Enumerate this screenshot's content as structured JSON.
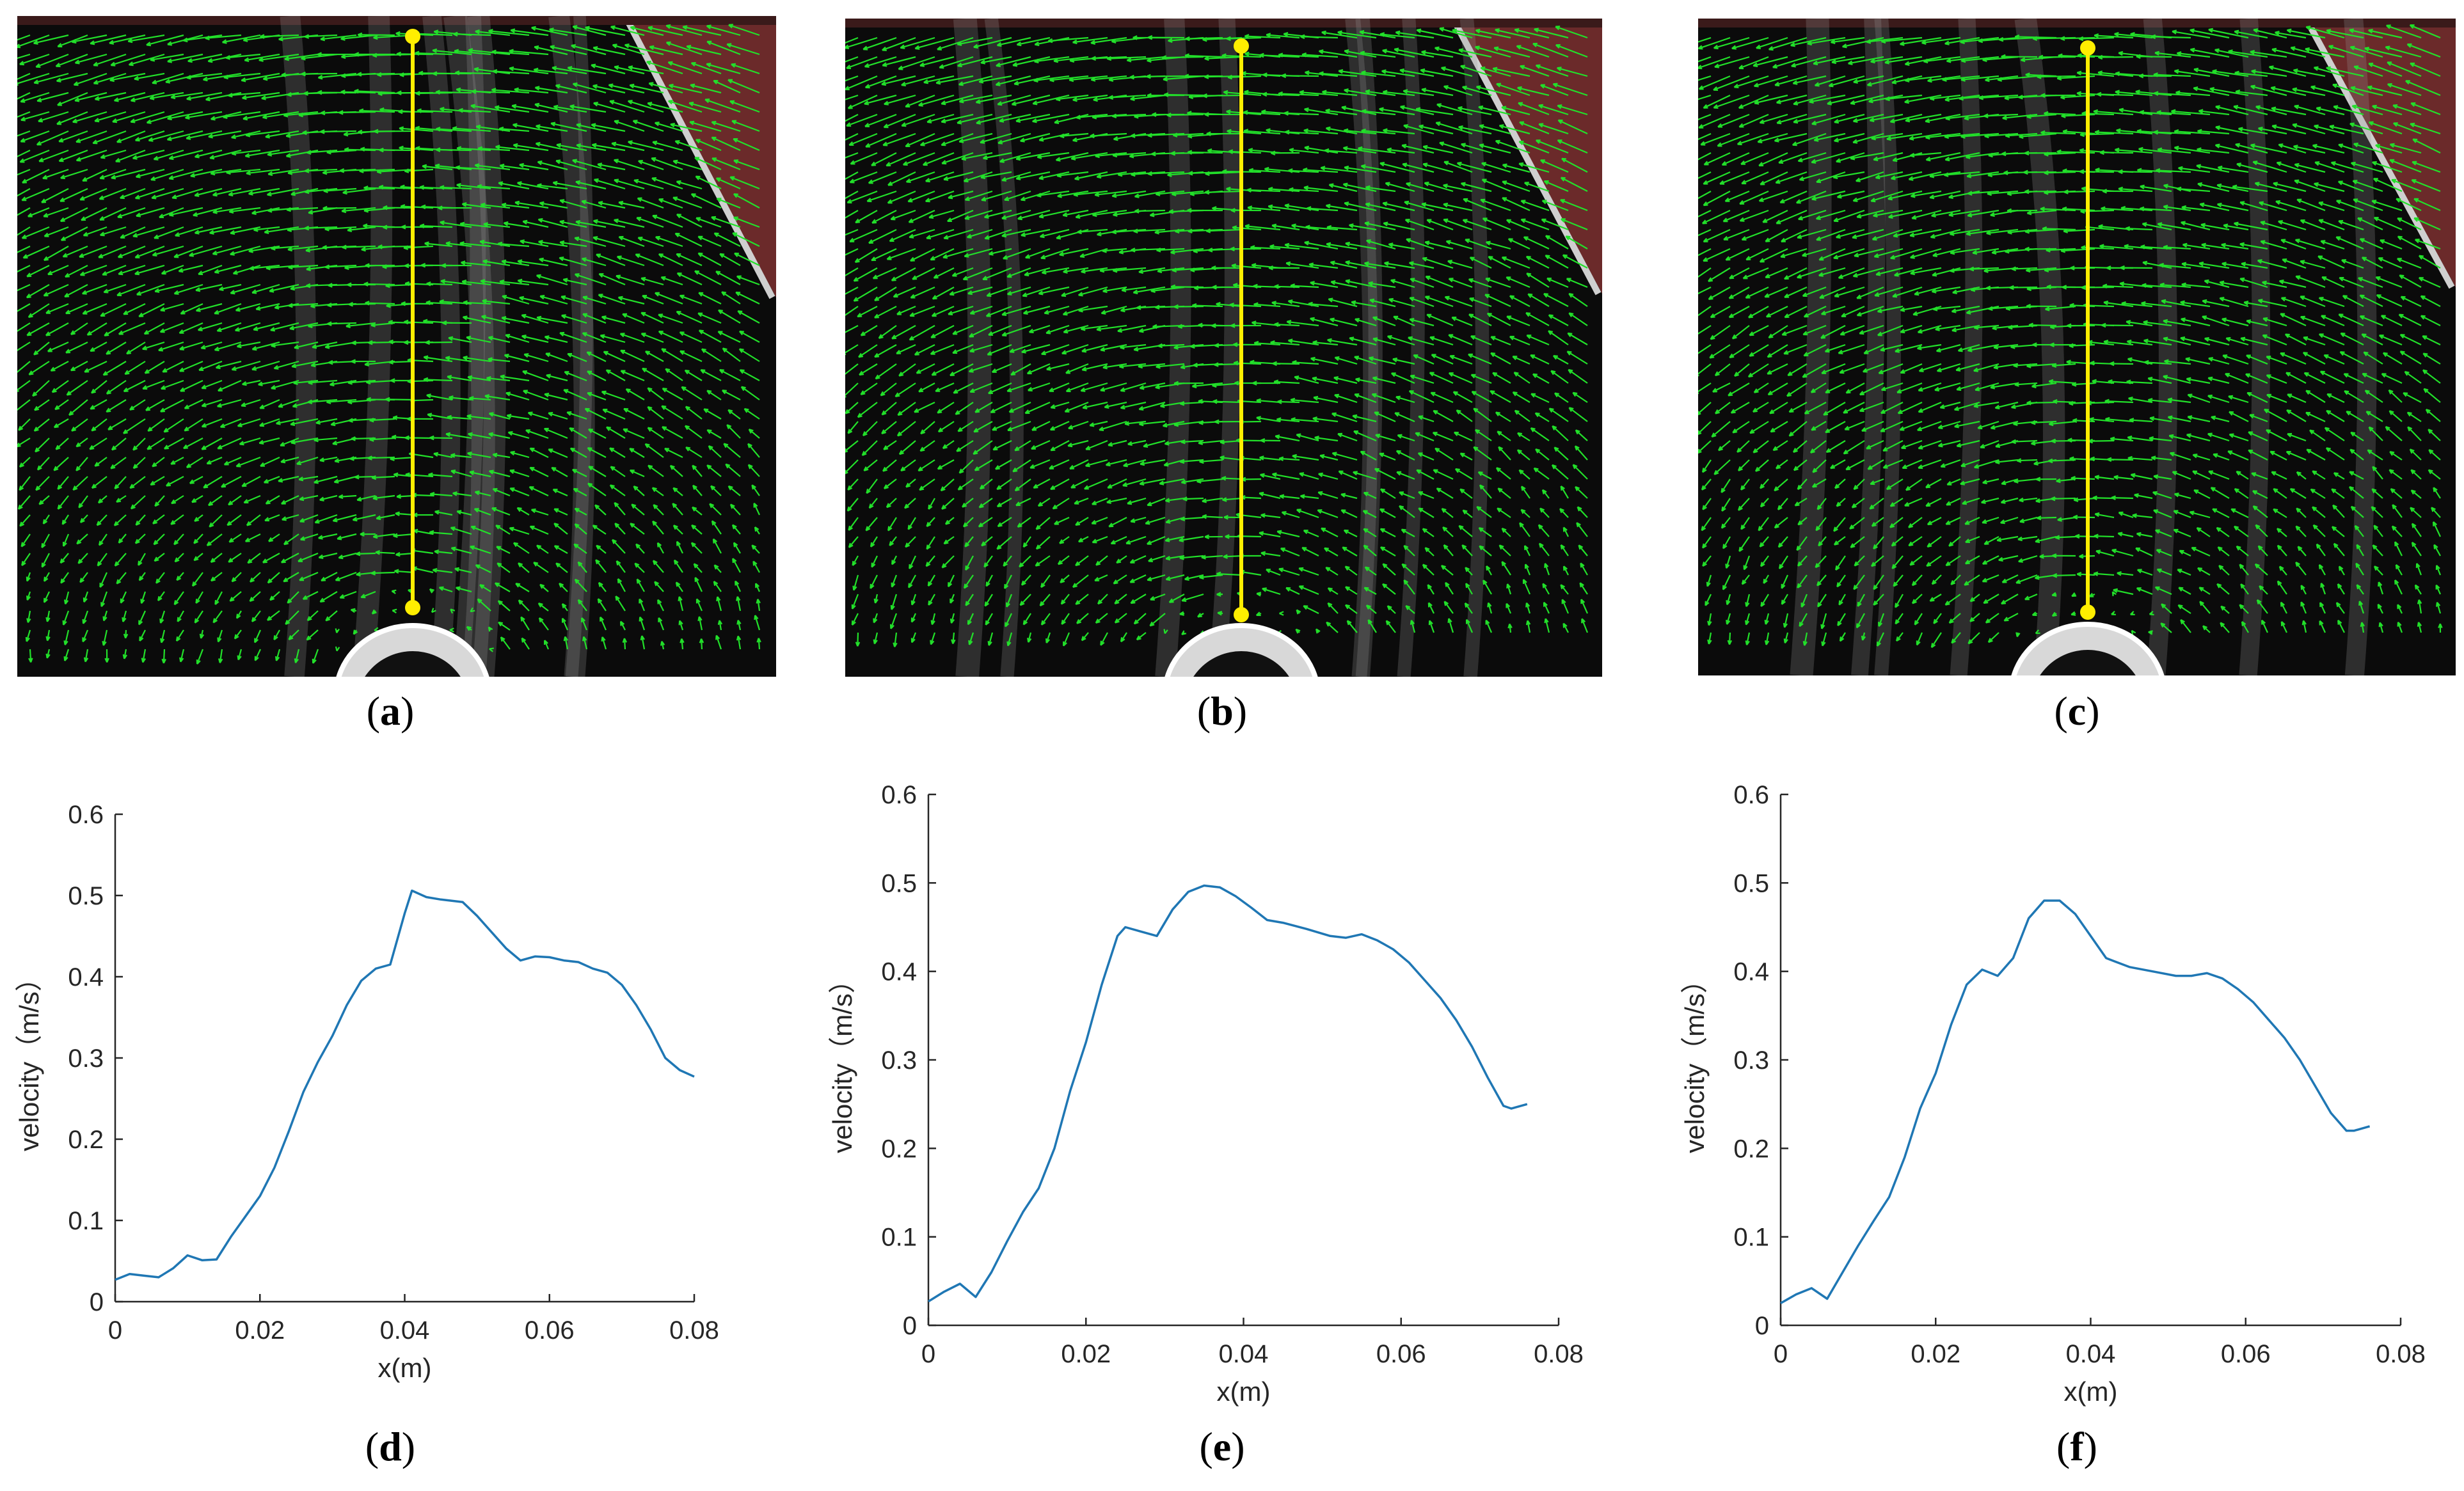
{
  "panels": [
    {
      "id": "a",
      "open": "(",
      "label": "a",
      "close": ")"
    },
    {
      "id": "b",
      "open": "(",
      "label": "b",
      "close": ")"
    },
    {
      "id": "c",
      "open": "(",
      "label": "c",
      "close": ")"
    }
  ],
  "colors": {
    "vector": "#22e02a",
    "probe_line": "#ffee00",
    "wall": "#6b2a2a",
    "curve": "#1f77b4"
  },
  "chart_data": [
    {
      "type": "line",
      "panel": {
        "open": "(",
        "label": "d",
        "close": ")"
      },
      "xlabel": "x(m)",
      "ylabel": "velocity（m/s）",
      "xlim": [
        0,
        0.08
      ],
      "ylim": [
        0,
        0.6
      ],
      "xticks": [
        0,
        0.02,
        0.04,
        0.06,
        0.08
      ],
      "xtick_labels": [
        "0",
        "0.02",
        "0.04",
        "0.06",
        "0.08"
      ],
      "yticks": [
        0,
        0.1,
        0.2,
        0.3,
        0.4,
        0.5,
        0.6
      ],
      "ytick_labels": [
        "0",
        "0.1",
        "0.2",
        "0.3",
        "0.4",
        "0.5",
        "0.6"
      ],
      "x": [
        0,
        0.002,
        0.004,
        0.006,
        0.008,
        0.01,
        0.012,
        0.014,
        0.016,
        0.018,
        0.02,
        0.022,
        0.024,
        0.026,
        0.028,
        0.03,
        0.032,
        0.034,
        0.036,
        0.038,
        0.04,
        0.041,
        0.043,
        0.045,
        0.048,
        0.05,
        0.052,
        0.054,
        0.056,
        0.058,
        0.06,
        0.062,
        0.064,
        0.066,
        0.068,
        0.07,
        0.072,
        0.074,
        0.076,
        0.078,
        0.08
      ],
      "y": [
        0.027,
        0.034,
        0.032,
        0.03,
        0.041,
        0.057,
        0.051,
        0.052,
        0.08,
        0.105,
        0.13,
        0.165,
        0.21,
        0.258,
        0.295,
        0.327,
        0.365,
        0.395,
        0.41,
        0.415,
        0.478,
        0.506,
        0.498,
        0.495,
        0.492,
        0.475,
        0.455,
        0.435,
        0.42,
        0.425,
        0.424,
        0.42,
        0.418,
        0.41,
        0.405,
        0.39,
        0.365,
        0.335,
        0.3,
        0.285,
        0.277
      ],
      "title": ""
    },
    {
      "type": "line",
      "panel": {
        "open": "(",
        "label": "e",
        "close": ")"
      },
      "xlabel": "x(m)",
      "ylabel": "velocity（m/s）",
      "xlim": [
        0,
        0.08
      ],
      "ylim": [
        0,
        0.6
      ],
      "xticks": [
        0,
        0.02,
        0.04,
        0.06,
        0.08
      ],
      "xtick_labels": [
        "0",
        "0.02",
        "0.04",
        "0.06",
        "0.08"
      ],
      "yticks": [
        0,
        0.1,
        0.2,
        0.3,
        0.4,
        0.5,
        0.6
      ],
      "ytick_labels": [
        "0",
        "0.1",
        "0.2",
        "0.3",
        "0.4",
        "0.5",
        "0.6"
      ],
      "x": [
        0,
        0.002,
        0.004,
        0.006,
        0.008,
        0.01,
        0.012,
        0.014,
        0.016,
        0.018,
        0.02,
        0.022,
        0.024,
        0.025,
        0.027,
        0.029,
        0.031,
        0.033,
        0.035,
        0.037,
        0.039,
        0.041,
        0.043,
        0.045,
        0.048,
        0.051,
        0.053,
        0.055,
        0.057,
        0.059,
        0.061,
        0.063,
        0.065,
        0.067,
        0.069,
        0.071,
        0.073,
        0.074,
        0.076
      ],
      "y": [
        0.027,
        0.038,
        0.047,
        0.032,
        0.06,
        0.095,
        0.128,
        0.155,
        0.2,
        0.265,
        0.32,
        0.385,
        0.44,
        0.45,
        0.445,
        0.44,
        0.47,
        0.49,
        0.497,
        0.495,
        0.485,
        0.472,
        0.458,
        0.455,
        0.448,
        0.44,
        0.438,
        0.442,
        0.435,
        0.425,
        0.41,
        0.39,
        0.37,
        0.345,
        0.315,
        0.28,
        0.248,
        0.245,
        0.25
      ],
      "title": ""
    },
    {
      "type": "line",
      "panel": {
        "open": "(",
        "label": "f",
        "close": ")"
      },
      "xlabel": "x(m)",
      "ylabel": "velocity（m/s）",
      "xlim": [
        0,
        0.08
      ],
      "ylim": [
        0,
        0.6
      ],
      "xticks": [
        0,
        0.02,
        0.04,
        0.06,
        0.08
      ],
      "xtick_labels": [
        "0",
        "0.02",
        "0.04",
        "0.06",
        "0.08"
      ],
      "yticks": [
        0,
        0.1,
        0.2,
        0.3,
        0.4,
        0.5,
        0.6
      ],
      "ytick_labels": [
        "0",
        "0.1",
        "0.2",
        "0.3",
        "0.4",
        "0.5",
        "0.6"
      ],
      "x": [
        0,
        0.002,
        0.004,
        0.006,
        0.008,
        0.01,
        0.012,
        0.014,
        0.016,
        0.018,
        0.02,
        0.022,
        0.024,
        0.026,
        0.028,
        0.03,
        0.032,
        0.034,
        0.036,
        0.038,
        0.04,
        0.042,
        0.045,
        0.048,
        0.051,
        0.053,
        0.055,
        0.057,
        0.059,
        0.061,
        0.063,
        0.065,
        0.067,
        0.069,
        0.071,
        0.073,
        0.074,
        0.076
      ],
      "y": [
        0.025,
        0.035,
        0.042,
        0.03,
        0.06,
        0.09,
        0.118,
        0.145,
        0.19,
        0.245,
        0.285,
        0.34,
        0.385,
        0.402,
        0.395,
        0.415,
        0.46,
        0.48,
        0.48,
        0.465,
        0.44,
        0.415,
        0.405,
        0.4,
        0.395,
        0.395,
        0.398,
        0.392,
        0.38,
        0.365,
        0.345,
        0.325,
        0.3,
        0.27,
        0.24,
        0.22,
        0.22,
        0.225
      ],
      "title": ""
    }
  ]
}
